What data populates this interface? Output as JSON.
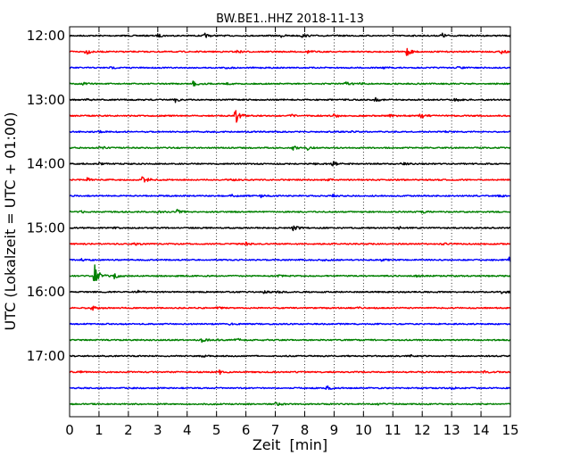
{
  "chart_data": {
    "type": "line",
    "title": "BW.BE1..HHZ 2018-11-13",
    "xlabel": "Zeit  [min]",
    "ylabel": "UTC (Lokalzeit = UTC + 01:00)",
    "xlim": [
      0,
      15
    ],
    "x_ticks": [
      "0",
      "1",
      "2",
      "3",
      "4",
      "5",
      "6",
      "7",
      "8",
      "9",
      "10",
      "11",
      "12",
      "13",
      "14",
      "15"
    ],
    "y_tick_labels": [
      "12:00",
      "13:00",
      "14:00",
      "15:00",
      "16:00",
      "17:00"
    ],
    "grid": "vertical dotted lines at each minute",
    "trace_colors": [
      "#000000",
      "#ff0000",
      "#0000ff",
      "#008000"
    ],
    "traces": [
      {
        "start": "12:00",
        "color": "#000000",
        "events": [
          {
            "t": 3.0,
            "amp": 0.25
          },
          {
            "t": 4.6,
            "amp": 0.35
          },
          {
            "t": 7.2,
            "amp": 0.2
          },
          {
            "t": 7.9,
            "amp": 0.25
          },
          {
            "t": 12.65,
            "amp": 0.5
          },
          {
            "t": 15.0,
            "amp": 0.3
          }
        ]
      },
      {
        "start": "12:15",
        "color": "#ff0000",
        "events": [
          {
            "t": 0.55,
            "amp": 0.5
          },
          {
            "t": 5.7,
            "amp": 0.2
          },
          {
            "t": 8.1,
            "amp": 0.2
          },
          {
            "t": 11.45,
            "amp": 1.0
          },
          {
            "t": 14.7,
            "amp": 0.3
          }
        ]
      },
      {
        "start": "12:30",
        "color": "#0000ff",
        "events": [
          {
            "t": 1.4,
            "amp": 0.15
          },
          {
            "t": 5.3,
            "amp": 0.15
          },
          {
            "t": 10.7,
            "amp": 0.15
          },
          {
            "t": 13.2,
            "amp": 0.15
          }
        ]
      },
      {
        "start": "12:45",
        "color": "#008000",
        "events": [
          {
            "t": 0.45,
            "amp": 0.25
          },
          {
            "t": 4.2,
            "amp": 0.6
          },
          {
            "t": 5.3,
            "amp": 0.15
          },
          {
            "t": 9.4,
            "amp": 0.3
          },
          {
            "t": 9.9,
            "amp": 0.2
          }
        ]
      },
      {
        "start": "13:00",
        "color": "#000000",
        "events": [
          {
            "t": 0.55,
            "amp": 0.15
          },
          {
            "t": 3.6,
            "amp": 0.4
          },
          {
            "t": 10.4,
            "amp": 0.3
          },
          {
            "t": 13.1,
            "amp": 0.35
          }
        ]
      },
      {
        "start": "13:15",
        "color": "#ff0000",
        "events": [
          {
            "t": 5.65,
            "amp": 1.3
          },
          {
            "t": 7.5,
            "amp": 0.25
          },
          {
            "t": 9.0,
            "amp": 0.3
          },
          {
            "t": 10.9,
            "amp": 0.25
          },
          {
            "t": 11.95,
            "amp": 0.55
          }
        ]
      },
      {
        "start": "13:30",
        "color": "#0000ff",
        "events": [
          {
            "t": 1.0,
            "amp": 0.15
          },
          {
            "t": 9.5,
            "amp": 0.15
          },
          {
            "t": 12.8,
            "amp": 0.15
          }
        ]
      },
      {
        "start": "13:45",
        "color": "#008000",
        "events": [
          {
            "t": 1.05,
            "amp": 0.3
          },
          {
            "t": 7.6,
            "amp": 0.35
          },
          {
            "t": 8.1,
            "amp": 0.3
          }
        ]
      },
      {
        "start": "14:00",
        "color": "#000000",
        "events": [
          {
            "t": 1.0,
            "amp": 0.2
          },
          {
            "t": 8.3,
            "amp": 0.2
          },
          {
            "t": 8.95,
            "amp": 0.45
          },
          {
            "t": 11.3,
            "amp": 0.2
          }
        ]
      },
      {
        "start": "14:15",
        "color": "#ff0000",
        "events": [
          {
            "t": 0.6,
            "amp": 0.35
          },
          {
            "t": 2.5,
            "amp": 1.0
          },
          {
            "t": 5.5,
            "amp": 0.15
          },
          {
            "t": 8.8,
            "amp": 0.15
          }
        ]
      },
      {
        "start": "14:30",
        "color": "#0000ff",
        "events": [
          {
            "t": 5.45,
            "amp": 0.45
          },
          {
            "t": 6.5,
            "amp": 0.25
          },
          {
            "t": 8.9,
            "amp": 0.25
          },
          {
            "t": 14.6,
            "amp": 0.2
          }
        ]
      },
      {
        "start": "14:45",
        "color": "#008000",
        "events": [
          {
            "t": 0.35,
            "amp": 0.3
          },
          {
            "t": 3.0,
            "amp": 0.2
          },
          {
            "t": 3.65,
            "amp": 0.5
          },
          {
            "t": 12.0,
            "amp": 0.2
          }
        ]
      },
      {
        "start": "15:00",
        "color": "#000000",
        "events": [
          {
            "t": 1.5,
            "amp": 0.2
          },
          {
            "t": 7.6,
            "amp": 0.5
          },
          {
            "t": 11.2,
            "amp": 0.2
          }
        ]
      },
      {
        "start": "15:15",
        "color": "#ff0000",
        "events": [
          {
            "t": 2.2,
            "amp": 0.2
          },
          {
            "t": 6.0,
            "amp": 0.25
          },
          {
            "t": 12.7,
            "amp": 0.2
          }
        ]
      },
      {
        "start": "15:30",
        "color": "#0000ff",
        "events": [
          {
            "t": 0.4,
            "amp": 0.15
          },
          {
            "t": 8.6,
            "amp": 0.35
          },
          {
            "t": 10.6,
            "amp": 0.2
          },
          {
            "t": 14.95,
            "amp": 0.5
          }
        ]
      },
      {
        "start": "15:45",
        "color": "#008000",
        "events": [
          {
            "t": 0.85,
            "amp": 2.0
          },
          {
            "t": 1.5,
            "amp": 0.45
          },
          {
            "t": 7.1,
            "amp": 0.15
          },
          {
            "t": 11.8,
            "amp": 0.15
          }
        ]
      },
      {
        "start": "16:00",
        "color": "#000000",
        "events": [
          {
            "t": 2.3,
            "amp": 0.3
          },
          {
            "t": 6.6,
            "amp": 0.25
          },
          {
            "t": 7.0,
            "amp": 0.3
          },
          {
            "t": 14.7,
            "amp": 0.3
          }
        ]
      },
      {
        "start": "16:15",
        "color": "#ff0000",
        "events": [
          {
            "t": 0.75,
            "amp": 0.4
          },
          {
            "t": 5.0,
            "amp": 0.15
          },
          {
            "t": 9.8,
            "amp": 0.15
          }
        ]
      },
      {
        "start": "16:30",
        "color": "#0000ff",
        "events": [
          {
            "t": 5.4,
            "amp": 0.15
          }
        ]
      },
      {
        "start": "16:45",
        "color": "#008000",
        "events": [
          {
            "t": 4.5,
            "amp": 0.3
          },
          {
            "t": 5.65,
            "amp": 0.4
          },
          {
            "t": 4.9,
            "amp": 0.2
          }
        ]
      },
      {
        "start": "17:00",
        "color": "#000000",
        "events": [
          {
            "t": 4.5,
            "amp": 0.15
          },
          {
            "t": 11.6,
            "amp": 0.15
          }
        ]
      },
      {
        "start": "17:15",
        "color": "#ff0000",
        "events": [
          {
            "t": 0.3,
            "amp": 0.15
          },
          {
            "t": 5.1,
            "amp": 0.4
          },
          {
            "t": 14.1,
            "amp": 0.15
          }
        ]
      },
      {
        "start": "17:30",
        "color": "#0000ff",
        "events": [
          {
            "t": 8.75,
            "amp": 0.4
          },
          {
            "t": 13.0,
            "amp": 0.15
          }
        ]
      },
      {
        "start": "17:45",
        "color": "#008000",
        "events": [
          {
            "t": 7.0,
            "amp": 0.35
          },
          {
            "t": 10.5,
            "amp": 0.15
          }
        ]
      }
    ]
  }
}
